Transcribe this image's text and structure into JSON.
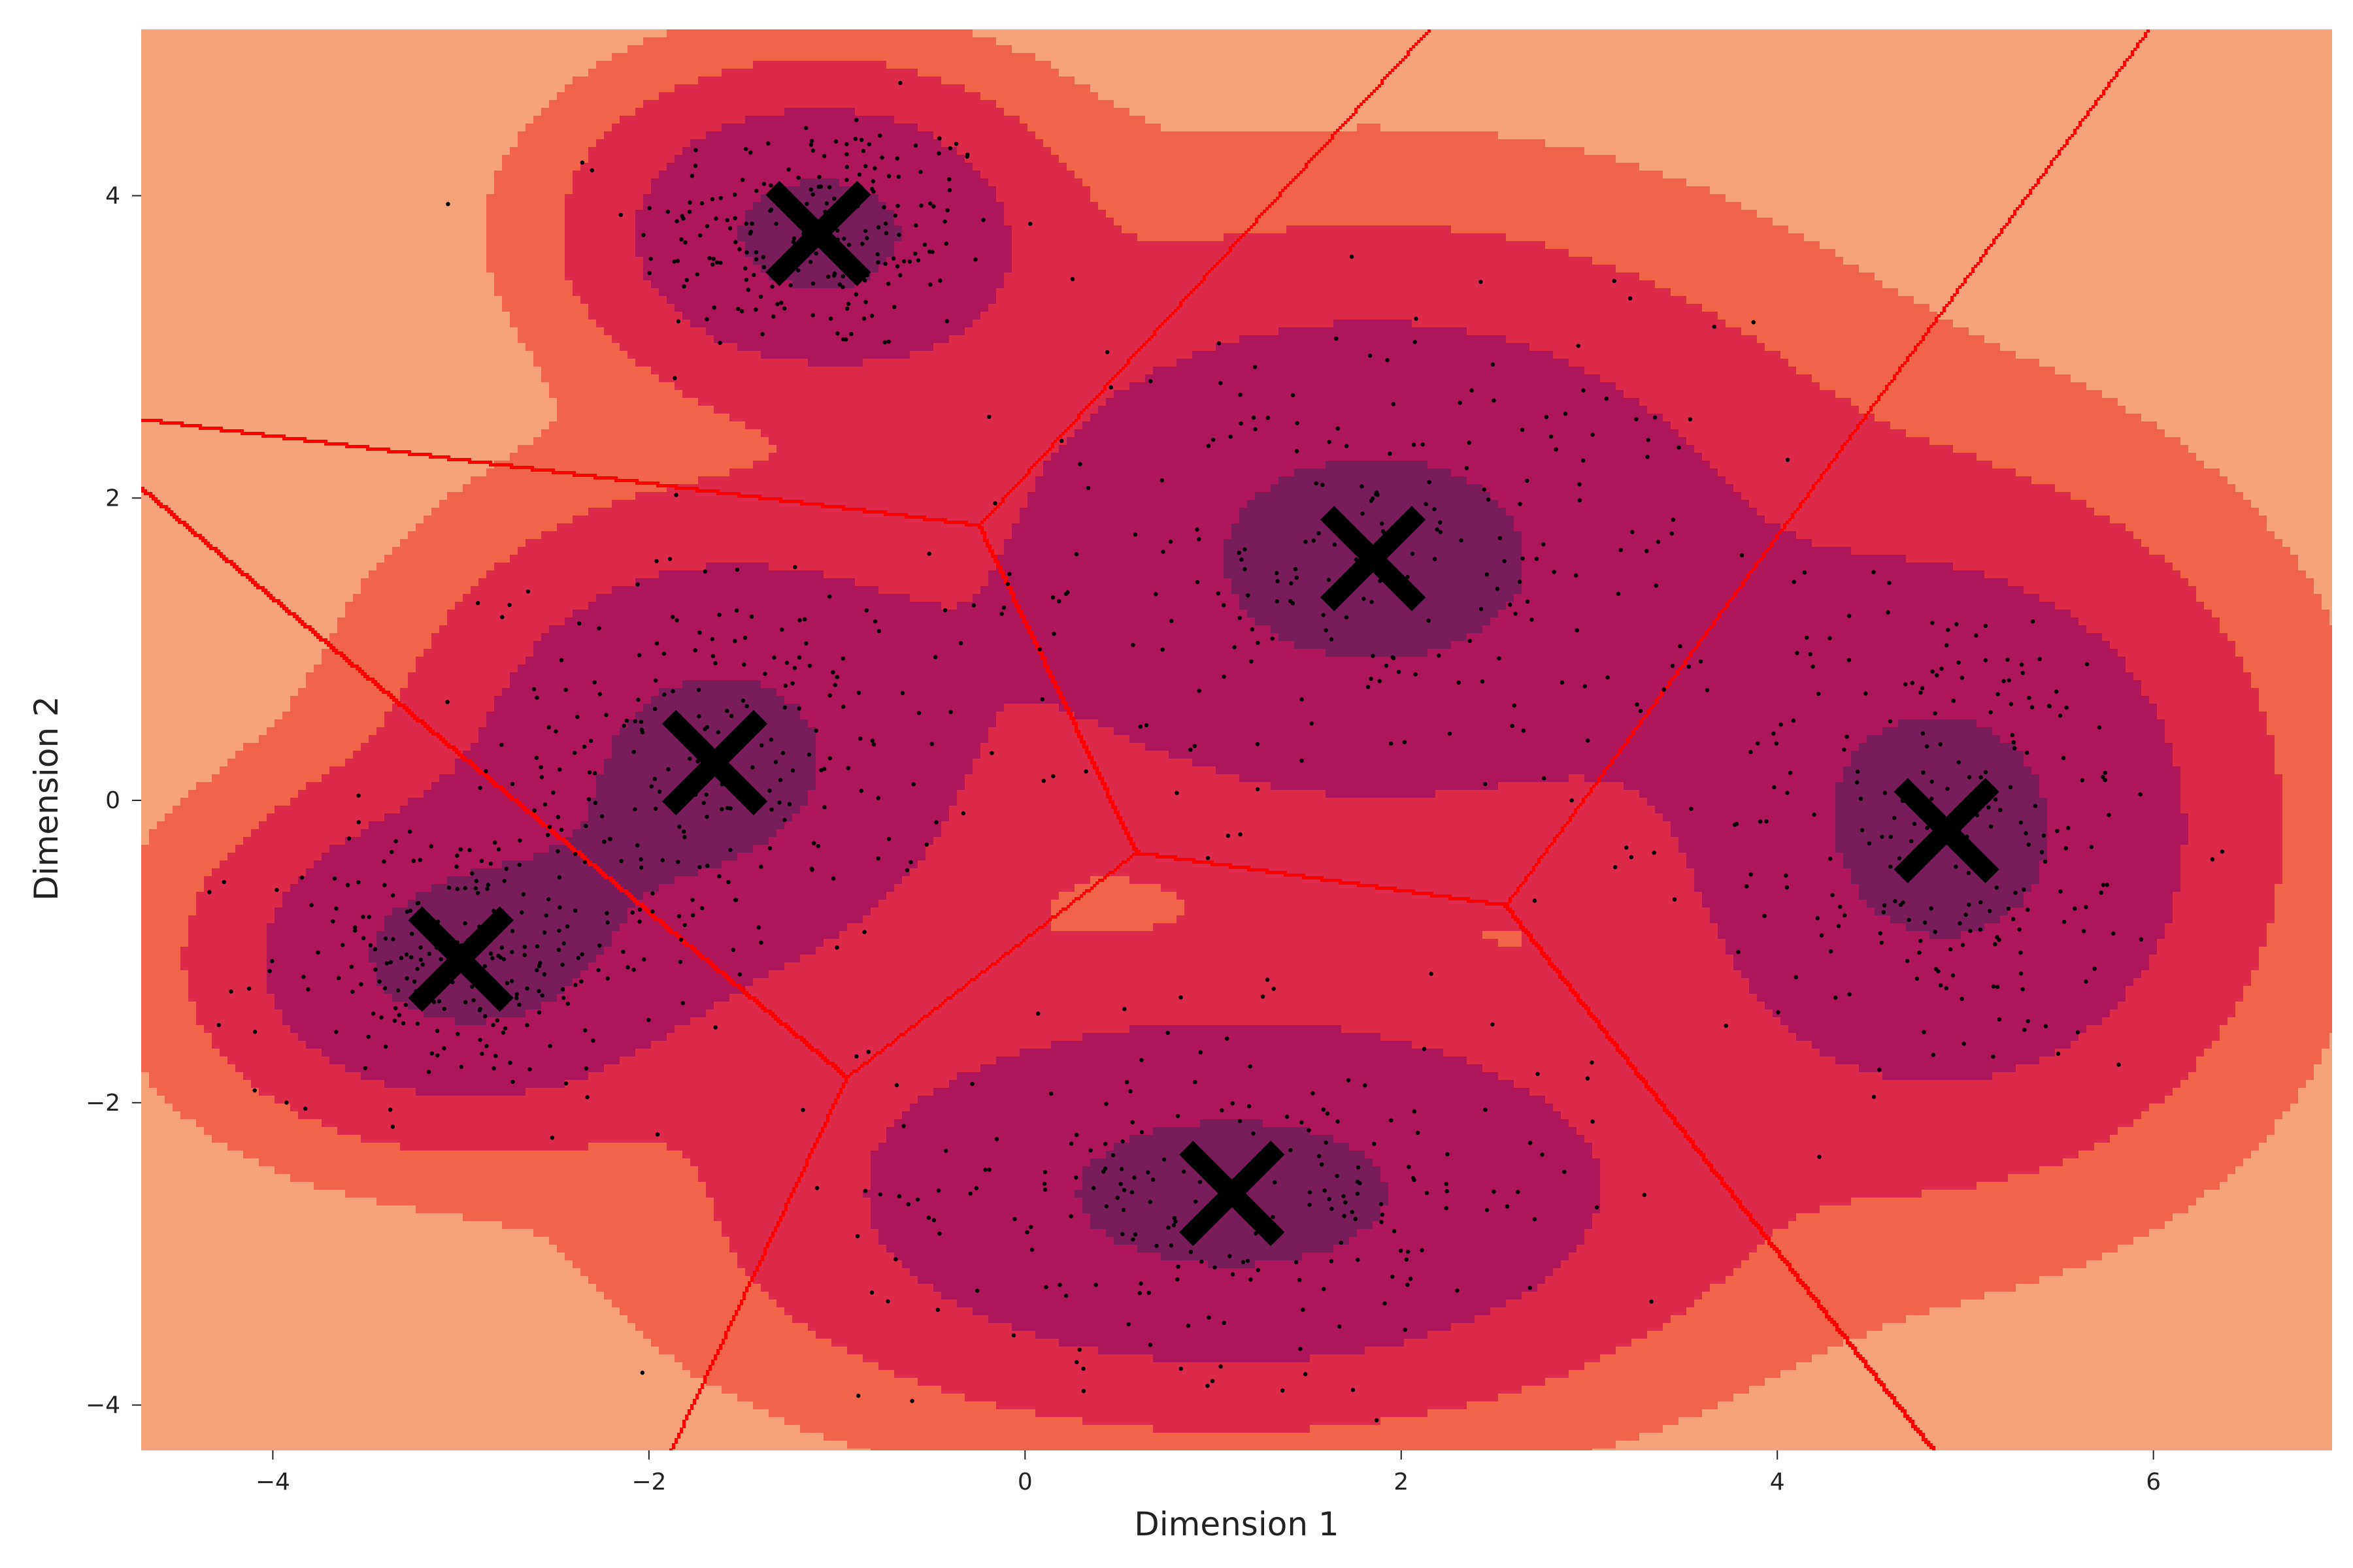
{
  "chart_data": {
    "type": "scatter",
    "title": "",
    "xlabel": "Dimension 1",
    "ylabel": "Dimension 2",
    "xlim": [
      -4.7,
      6.95
    ],
    "ylim": [
      -4.3,
      5.1
    ],
    "xticks": [
      -4,
      -2,
      0,
      2,
      4,
      6
    ],
    "yticks": [
      -4,
      -2,
      0,
      2,
      4
    ],
    "xtick_labels": [
      "−4",
      "−2",
      "0",
      "2",
      "4",
      "6"
    ],
    "ytick_labels": [
      "−4",
      "−2",
      "0",
      "2",
      "4"
    ],
    "grid": false,
    "legend": "none",
    "density_levels": [
      {
        "level": 0,
        "color": "#f6a37b"
      },
      {
        "level": 1,
        "color": "#f0654a"
      },
      {
        "level": 2,
        "color": "#dc2a48"
      },
      {
        "level": 3,
        "color": "#ad1759"
      },
      {
        "level": 4,
        "color": "#781c5b"
      }
    ],
    "cluster_centers": [
      {
        "x": -1.1,
        "y": 3.75
      },
      {
        "x": 1.85,
        "y": 1.6
      },
      {
        "x": -1.65,
        "y": 0.25
      },
      {
        "x": -3.0,
        "y": -1.05
      },
      {
        "x": 4.9,
        "y": -0.2
      },
      {
        "x": 1.1,
        "y": -2.6
      }
    ],
    "cluster_spreads": [
      {
        "sx": 0.65,
        "sy": 0.55
      },
      {
        "sx": 1.25,
        "sy": 1.05
      },
      {
        "sx": 0.8,
        "sy": 0.85
      },
      {
        "sx": 0.7,
        "sy": 0.6
      },
      {
        "sx": 0.85,
        "sy": 1.1
      },
      {
        "sx": 1.3,
        "sy": 0.75
      }
    ],
    "points_per_cluster": 230,
    "boundary_color": "#ff0000",
    "center_marker": "x",
    "center_color": "#000000",
    "point_color": "#000000"
  }
}
